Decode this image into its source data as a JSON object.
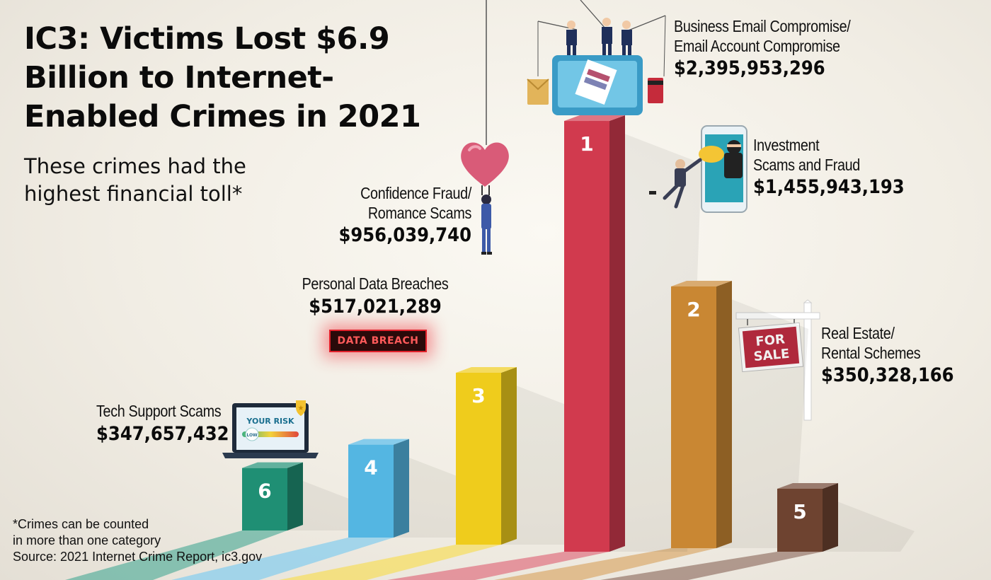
{
  "title": "IC3: Victims Lost $6.9 Billion to Internet-Enabled Crimes in 2021",
  "subtitle": "These crimes had the highest financial toll*",
  "footnote": {
    "line1": "*Crimes can be counted",
    "line2": "in more than one category",
    "line3": "Source: 2021 Internet Crime Report, ic3.gov"
  },
  "decor": {
    "data_breach_sign": "DATA BREACH",
    "for_sale_sign_line1": "FOR",
    "for_sale_sign_line2": "SALE",
    "risk_screen_title": "YOUR RISK",
    "risk_screen_level": "LOW",
    "fishing-icon": "fishing-hooks-monitor",
    "heart-icon": "heart-balloon",
    "phone-icon": "phone-thief"
  },
  "colors": {
    "tech_support": "#1f8f74",
    "data_breaches": "#54b6e2",
    "confidence": "#efcc1c",
    "bec": "#d13a4e",
    "investment": "#c98733",
    "real_estate": "#6e4330"
  },
  "chart_data": {
    "type": "bar",
    "categories": [
      "Tech Support Scams",
      "Personal Data Breaches",
      "Confidence Fraud/ Romance Scams",
      "Business Email Compromise/ Email Account Compromise",
      "Investment Scams and Fraud",
      "Real Estate/ Rental Schemes"
    ],
    "name_lines": [
      [
        "Tech Support Scams"
      ],
      [
        "Personal Data Breaches"
      ],
      [
        "Confidence Fraud/",
        "Romance Scams"
      ],
      [
        "Business Email Compromise/",
        "Email Account Compromise"
      ],
      [
        "Investment",
        "Scams and Fraud"
      ],
      [
        "Real Estate/",
        "Rental Schemes"
      ]
    ],
    "values": [
      347657432,
      517021289,
      956039740,
      2395953296,
      1455943193,
      350328166
    ],
    "value_labels": [
      "$347,657,432",
      "$517,021,289",
      "$956,039,740",
      "$2,395,953,296",
      "$1,455,943,193",
      "$350,328,166"
    ],
    "ranks": [
      "6",
      "4",
      "3",
      "1",
      "2",
      "5"
    ],
    "colors": [
      "#1f8f74",
      "#54b6e2",
      "#efcc1c",
      "#d13a4e",
      "#c98733",
      "#6e4330"
    ],
    "legend": "none",
    "grid": false
  }
}
